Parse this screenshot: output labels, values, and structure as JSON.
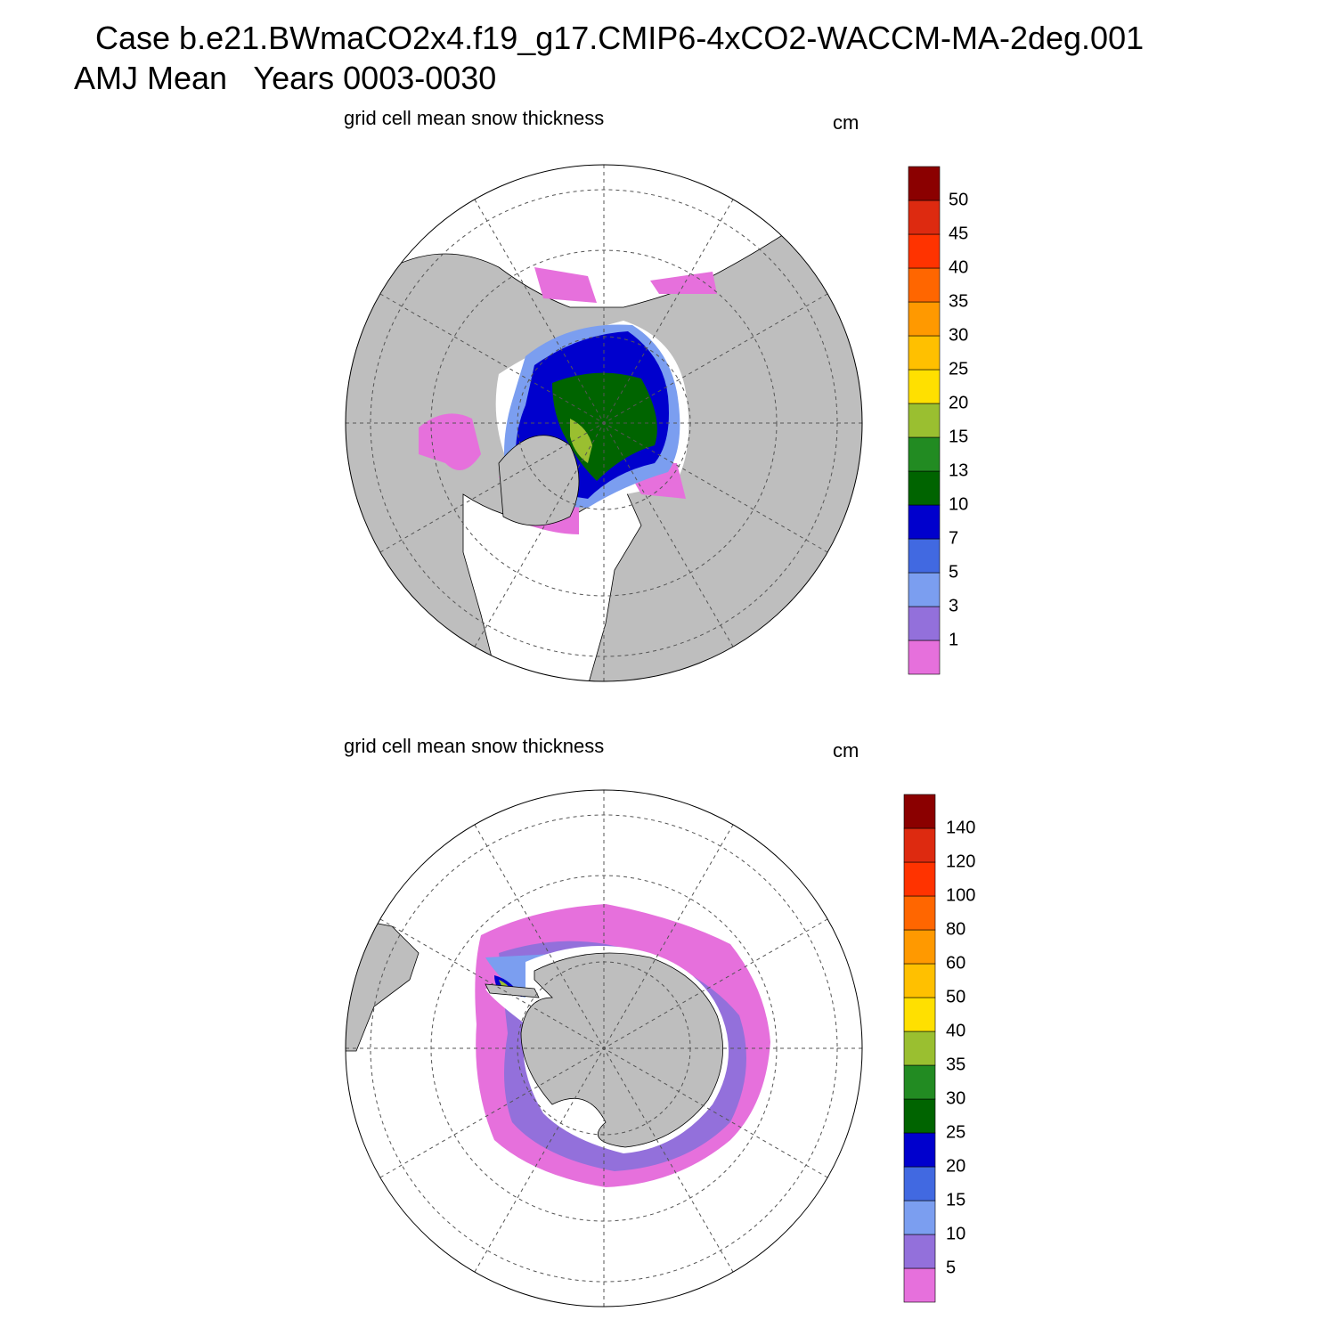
{
  "title": [
    "Case b.e21.BWmaCO2x4.f19_g17.CMIP6-4xCO2-WACCM-MA-2deg.001",
    "AMJ Mean   Years 0003-0030"
  ],
  "panels": [
    {
      "subtitle": "grid cell mean snow thickness",
      "units": "cm",
      "colorbar": {
        "levels": [
          1,
          3,
          5,
          7,
          10,
          13,
          15,
          20,
          25,
          30,
          35,
          40,
          45,
          50
        ],
        "colors": [
          "#e670dc",
          "#9370db",
          "#7b9ef0",
          "#4169e1",
          "#0000cd",
          "#006400",
          "#228b22",
          "#9abf30",
          "#ffe000",
          "#ffc000",
          "#ff9900",
          "#ff6600",
          "#ff3300",
          "#dd2a10",
          "#8b0000"
        ]
      }
    },
    {
      "subtitle": "grid cell mean snow thickness",
      "units": "cm",
      "colorbar": {
        "levels": [
          5,
          10,
          15,
          20,
          25,
          30,
          35,
          40,
          50,
          60,
          80,
          100,
          120,
          140
        ],
        "colors": [
          "#e670dc",
          "#9370db",
          "#7b9ef0",
          "#4169e1",
          "#0000cd",
          "#006400",
          "#228b22",
          "#9abf30",
          "#ffe000",
          "#ffc000",
          "#ff9900",
          "#ff6600",
          "#ff3300",
          "#dd2a10",
          "#8b0000"
        ]
      }
    }
  ]
}
